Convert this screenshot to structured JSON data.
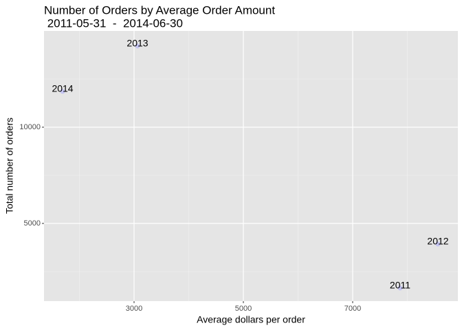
{
  "chart_data": {
    "type": "scatter",
    "title": "Number of Orders by Average Order Amount",
    "subtitle": " 2011-05-31  -  2014-06-30",
    "x_label": "Average dollars per order",
    "y_label": "Total number of orders",
    "labels": [
      "2011",
      "2012",
      "2013",
      "2014"
    ],
    "x": [
      7868,
      8560,
      3063,
      1692
    ],
    "values": [
      1643,
      3929,
      14214,
      11857
    ],
    "color": "#c5c5f2",
    "xlim": [
      1352,
      8925
    ],
    "ylim": [
      964,
      15000
    ],
    "xticks": [
      3000,
      5000,
      7000
    ],
    "yticks": [
      5000,
      10000
    ],
    "grid": true
  }
}
